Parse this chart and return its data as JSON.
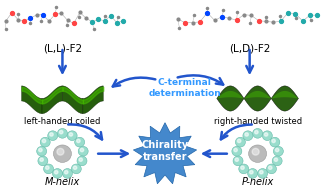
{
  "label_ll": "(L,L)-F2",
  "label_ld": "(L,D)-F2",
  "label_lhc": "left-handed coiled",
  "label_rht": "right-handed twisted",
  "label_mhelix": "M-helix",
  "label_phelix": "P-helix",
  "label_cterminal": "C-terminal\ndetermination",
  "label_chirality": "Chirality\ntransfer",
  "bg_color": "#ffffff",
  "arrow_color": "#2255cc",
  "coil_dark": "#1a5500",
  "coil_light": "#44bb00",
  "helix_teal": "#99ddcc",
  "helix_gray": "#bbbbbb",
  "star_color": "#4488cc",
  "text_cterminal": "#3399ff",
  "text_chirality": "#ffffff"
}
